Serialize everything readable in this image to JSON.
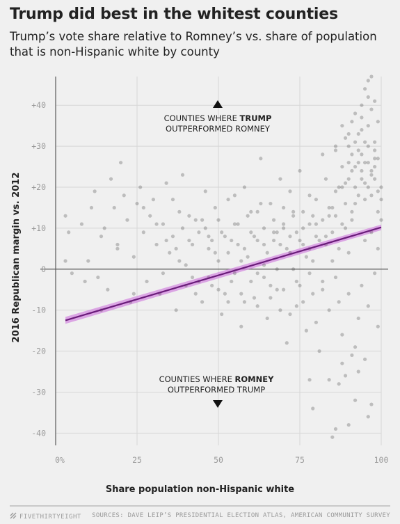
{
  "header": {
    "title": "Trump did best in the whitest counties",
    "subtitle": "Trump’s vote share relative to Romney’s vs. share of population that is non-Hispanic white by county"
  },
  "footer": {
    "brand": "FIVETHIRTYEIGHT",
    "sources": "SOURCES: DAVE LEIP’S PRESIDENTIAL ELECTION ATLAS, AMERICAN COMMUNITY SURVEY"
  },
  "annotations": {
    "top_line1_prefix": "COUNTIES WHERE ",
    "top_line1_bold": "TRUMP",
    "top_line2": "OUTPERFORMED ROMNEY",
    "bottom_line1_prefix": "COUNTIES WHERE ",
    "bottom_line1_bold": "ROMNEY",
    "bottom_line2": "OUTPERFORMED TRUMP"
  },
  "colors": {
    "points": "#3a3a3a",
    "trend_line": "#6a1b7a",
    "trend_band": "#d48ce0",
    "grid": "#d6d6d6",
    "zero_line": "#555555"
  },
  "chart_data": {
    "type": "scatter",
    "title": "Trump did best in the whitest counties",
    "subtitle": "Trump’s vote share relative to Romney’s vs. share of population that is non-Hispanic white by county",
    "xlabel": "Share population non-Hispanic white",
    "ylabel": "2016 Republican margin vs. 2012",
    "xlim": [
      0,
      100
    ],
    "ylim": [
      -43,
      47
    ],
    "x_ticks": [
      0,
      25,
      50,
      75,
      100
    ],
    "x_tick_labels": [
      "0%",
      "25",
      "50",
      "75",
      "100"
    ],
    "y_ticks": [
      -40,
      -30,
      -20,
      -10,
      0,
      10,
      20,
      30,
      40
    ],
    "y_tick_labels": [
      "-40",
      "-30",
      "-20",
      "-10",
      "0",
      "+10",
      "+20",
      "+30",
      "+40"
    ],
    "grid": true,
    "trend": {
      "x": [
        3,
        100
      ],
      "y": [
        -12.5,
        10.2
      ]
    },
    "points": [
      [
        3,
        13
      ],
      [
        3,
        2
      ],
      [
        5,
        -1
      ],
      [
        8,
        11
      ],
      [
        10,
        2
      ],
      [
        12,
        19
      ],
      [
        13,
        -2
      ],
      [
        14,
        8
      ],
      [
        15,
        10
      ],
      [
        16,
        -5
      ],
      [
        17,
        22
      ],
      [
        18,
        15
      ],
      [
        19,
        5
      ],
      [
        20,
        26
      ],
      [
        21,
        18
      ],
      [
        22,
        12
      ],
      [
        23,
        -8
      ],
      [
        24,
        3
      ],
      [
        25,
        16
      ],
      [
        26,
        20
      ],
      [
        27,
        9
      ],
      [
        28,
        -3
      ],
      [
        29,
        13
      ],
      [
        30,
        17
      ],
      [
        31,
        6
      ],
      [
        32,
        -6
      ],
      [
        33,
        11
      ],
      [
        34,
        21
      ],
      [
        35,
        4
      ],
      [
        36,
        8
      ],
      [
        37,
        -10
      ],
      [
        38,
        14
      ],
      [
        39,
        23
      ],
      [
        40,
        1
      ],
      [
        41,
        7
      ],
      [
        42,
        -2
      ],
      [
        43,
        12
      ],
      [
        44,
        9
      ],
      [
        45,
        -8
      ],
      [
        46,
        19
      ],
      [
        47,
        5
      ],
      [
        48,
        -4
      ],
      [
        49,
        15
      ],
      [
        50,
        2
      ],
      [
        51,
        -11
      ],
      [
        52,
        8
      ],
      [
        53,
        17
      ],
      [
        54,
        -3
      ],
      [
        55,
        11
      ],
      [
        56,
        6
      ],
      [
        57,
        -14
      ],
      [
        58,
        20
      ],
      [
        59,
        3
      ],
      [
        60,
        9
      ],
      [
        61,
        -7
      ],
      [
        62,
        14
      ],
      [
        63,
        27
      ],
      [
        64,
        1
      ],
      [
        65,
        -12
      ],
      [
        66,
        16
      ],
      [
        67,
        7
      ],
      [
        68,
        -5
      ],
      [
        69,
        22
      ],
      [
        70,
        10
      ],
      [
        71,
        -18
      ],
      [
        72,
        4
      ],
      [
        73,
        13
      ],
      [
        74,
        -9
      ],
      [
        75,
        24
      ],
      [
        76,
        6
      ],
      [
        77,
        -15
      ],
      [
        78,
        18
      ],
      [
        79,
        2
      ],
      [
        80,
        11
      ],
      [
        81,
        -20
      ],
      [
        82,
        28
      ],
      [
        83,
        8
      ],
      [
        84,
        -27
      ],
      [
        85,
        15
      ],
      [
        86,
        30
      ],
      [
        87,
        5
      ],
      [
        88,
        -23
      ],
      [
        89,
        21
      ],
      [
        90,
        33
      ],
      [
        91,
        12
      ],
      [
        92,
        -32
      ],
      [
        93,
        26
      ],
      [
        94,
        40
      ],
      [
        95,
        17
      ],
      [
        96,
        46
      ],
      [
        97,
        9
      ],
      [
        98,
        31
      ],
      [
        99,
        14
      ],
      [
        100,
        20
      ],
      [
        4,
        9
      ],
      [
        9,
        -3
      ],
      [
        11,
        15
      ],
      [
        14,
        -10
      ],
      [
        19,
        6
      ],
      [
        24,
        -6
      ],
      [
        27,
        15
      ],
      [
        31,
        11
      ],
      [
        33,
        -1
      ],
      [
        36,
        17
      ],
      [
        38,
        2
      ],
      [
        41,
        13
      ],
      [
        44,
        -3
      ],
      [
        46,
        10
      ],
      [
        48,
        7
      ],
      [
        50,
        12
      ],
      [
        52,
        -6
      ],
      [
        53,
        4
      ],
      [
        55,
        18
      ],
      [
        57,
        2
      ],
      [
        58,
        -8
      ],
      [
        59,
        13
      ],
      [
        61,
        8
      ],
      [
        62,
        -1
      ],
      [
        63,
        16
      ],
      [
        64,
        6
      ],
      [
        66,
        -4
      ],
      [
        67,
        12
      ],
      [
        68,
        9
      ],
      [
        69,
        -10
      ],
      [
        70,
        15
      ],
      [
        71,
        5
      ],
      [
        72,
        19
      ],
      [
        73,
        0
      ],
      [
        74,
        9
      ],
      [
        75,
        -4
      ],
      [
        76,
        14
      ],
      [
        77,
        3
      ],
      [
        78,
        11
      ],
      [
        79,
        -6
      ],
      [
        80,
        17
      ],
      [
        81,
        7
      ],
      [
        82,
        -3
      ],
      [
        83,
        22
      ],
      [
        84,
        13
      ],
      [
        85,
        2
      ],
      [
        86,
        19
      ],
      [
        87,
        -8
      ],
      [
        88,
        25
      ],
      [
        89,
        10
      ],
      [
        90,
        4
      ],
      [
        91,
        28
      ],
      [
        92,
        16
      ],
      [
        93,
        -12
      ],
      [
        94,
        24
      ],
      [
        95,
        7
      ],
      [
        96,
        35
      ],
      [
        97,
        18
      ],
      [
        98,
        25
      ],
      [
        99,
        5
      ],
      [
        100,
        12
      ],
      [
        34,
        7
      ],
      [
        37,
        5
      ],
      [
        39,
        10
      ],
      [
        42,
        6
      ],
      [
        45,
        12
      ],
      [
        47,
        8
      ],
      [
        49,
        4
      ],
      [
        51,
        9
      ],
      [
        54,
        7
      ],
      [
        56,
        11
      ],
      [
        58,
        5
      ],
      [
        60,
        14
      ],
      [
        62,
        7
      ],
      [
        64,
        10
      ],
      [
        65,
        4
      ],
      [
        67,
        9
      ],
      [
        69,
        6
      ],
      [
        70,
        11
      ],
      [
        72,
        8
      ],
      [
        73,
        14
      ],
      [
        75,
        7
      ],
      [
        76,
        10
      ],
      [
        78,
        5
      ],
      [
        79,
        13
      ],
      [
        80,
        8
      ],
      [
        82,
        12
      ],
      [
        83,
        6
      ],
      [
        84,
        15
      ],
      [
        85,
        9
      ],
      [
        86,
        13
      ],
      [
        87,
        20
      ],
      [
        88,
        11
      ],
      [
        89,
        16
      ],
      [
        90,
        22
      ],
      [
        91,
        14
      ],
      [
        92,
        25
      ],
      [
        93,
        18
      ],
      [
        94,
        28
      ],
      [
        95,
        21
      ],
      [
        96,
        26
      ],
      [
        97,
        23
      ],
      [
        98,
        29
      ],
      [
        99,
        19
      ],
      [
        100,
        17
      ],
      [
        40,
        -4
      ],
      [
        43,
        -6
      ],
      [
        47,
        -2
      ],
      [
        50,
        -5
      ],
      [
        53,
        -8
      ],
      [
        55,
        -1
      ],
      [
        57,
        -6
      ],
      [
        60,
        -3
      ],
      [
        62,
        -9
      ],
      [
        64,
        -2
      ],
      [
        66,
        -7
      ],
      [
        68,
        0
      ],
      [
        70,
        -5
      ],
      [
        72,
        -11
      ],
      [
        74,
        -3
      ],
      [
        76,
        -8
      ],
      [
        78,
        -1
      ],
      [
        80,
        -13
      ],
      [
        82,
        -5
      ],
      [
        84,
        -10
      ],
      [
        86,
        -2
      ],
      [
        88,
        -16
      ],
      [
        90,
        -6
      ],
      [
        92,
        -19
      ],
      [
        94,
        -4
      ],
      [
        96,
        -9
      ],
      [
        98,
        -1
      ],
      [
        99,
        -14
      ],
      [
        85,
        -41
      ],
      [
        86,
        -39
      ],
      [
        90,
        -38
      ],
      [
        79,
        -34
      ],
      [
        96,
        -36
      ],
      [
        97,
        -33
      ],
      [
        93,
        -25
      ],
      [
        91,
        -21
      ],
      [
        95,
        -22
      ],
      [
        89,
        -26
      ],
      [
        87,
        -28
      ],
      [
        78,
        -27
      ],
      [
        88,
        35
      ],
      [
        90,
        30
      ],
      [
        92,
        38
      ],
      [
        93,
        33
      ],
      [
        94,
        37
      ],
      [
        95,
        31
      ],
      [
        96,
        42
      ],
      [
        97,
        39
      ],
      [
        98,
        41
      ],
      [
        99,
        36
      ],
      [
        95,
        44
      ],
      [
        97,
        47
      ],
      [
        91,
        36
      ],
      [
        89,
        32
      ],
      [
        86,
        29
      ],
      [
        92,
        31
      ],
      [
        94,
        34
      ],
      [
        96,
        30
      ],
      [
        98,
        27
      ],
      [
        93,
        29
      ],
      [
        90,
        26
      ],
      [
        91,
        24
      ],
      [
        94,
        22
      ],
      [
        95,
        26
      ],
      [
        97,
        24
      ],
      [
        99,
        27
      ],
      [
        96,
        20
      ],
      [
        98,
        22
      ],
      [
        92,
        20
      ],
      [
        88,
        20
      ]
    ]
  }
}
